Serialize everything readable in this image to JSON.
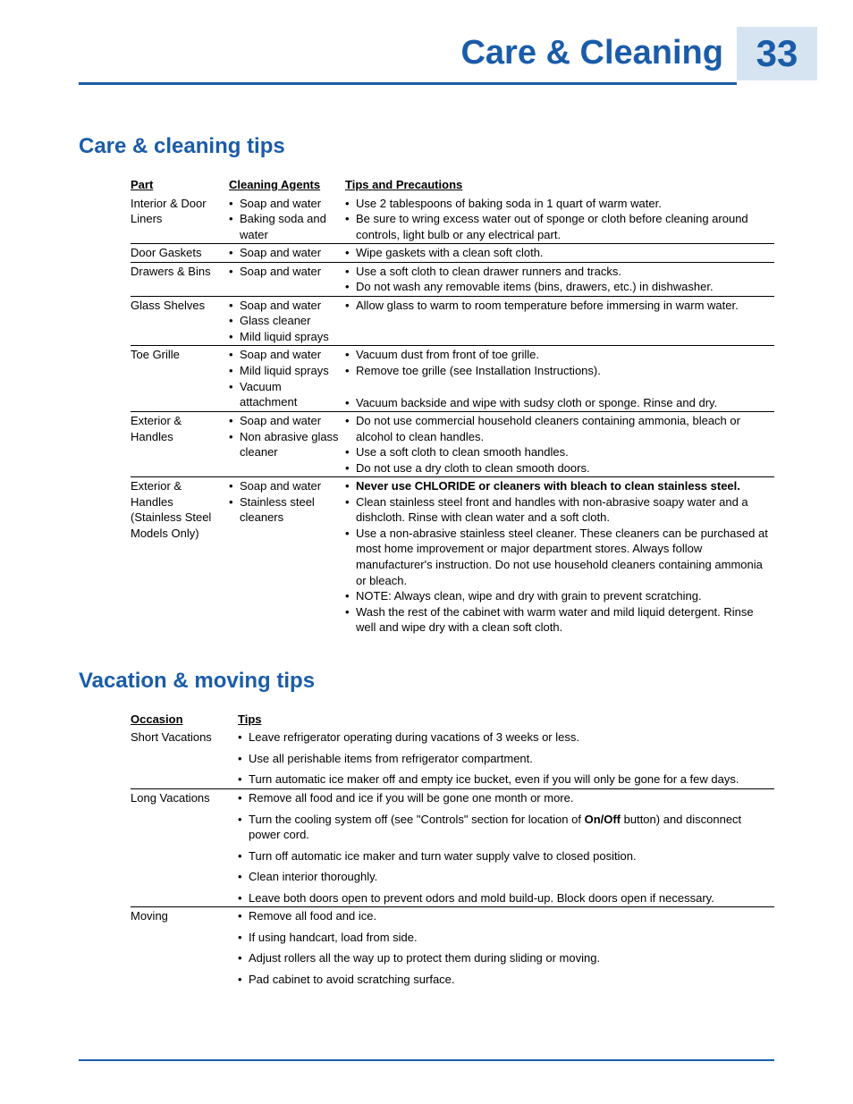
{
  "page": {
    "title": "Care & Cleaning",
    "number": "33"
  },
  "colors": {
    "accent": "#1a5ca8",
    "accent_light_bg": "#d6e4f2",
    "text": "#000000",
    "background": "#ffffff"
  },
  "typography": {
    "page_title_size": 38,
    "page_number_size": 42,
    "section_heading_size": 24,
    "body_size": 13,
    "font_family": "Arial"
  },
  "sections": {
    "care": {
      "heading": "Care & cleaning tips",
      "columns": {
        "part": "Part",
        "agents": "Cleaning Agents",
        "tips": "Tips and Precautions"
      },
      "rows": [
        {
          "part": "Interior & Door Liners",
          "agents": [
            "Soap and water",
            "Baking soda and water"
          ],
          "tips": [
            "Use 2 tablespoons of baking soda in 1 quart of warm water.",
            "Be sure to wring excess water out of sponge or cloth before cleaning around controls, light bulb or any electrical part."
          ]
        },
        {
          "part": "Door Gaskets",
          "agents": [
            "Soap and water"
          ],
          "tips": [
            "Wipe gaskets with a clean soft cloth."
          ]
        },
        {
          "part": "Drawers & Bins",
          "agents": [
            "Soap and water"
          ],
          "tips": [
            "Use a soft cloth to clean drawer runners and tracks.",
            "Do not wash any removable items (bins, drawers, etc.) in dishwasher."
          ]
        },
        {
          "part": "Glass Shelves",
          "agents": [
            "Soap and water",
            "Glass cleaner",
            "Mild liquid sprays"
          ],
          "tips": [
            "Allow glass to warm to room temperature before immersing in warm water."
          ]
        },
        {
          "part": "Toe Grille",
          "agents": [
            "Soap and water",
            "Mild liquid sprays",
            "Vacuum attachment"
          ],
          "tips": [
            "Vacuum dust from front of toe grille.",
            "Remove toe grille (see Installation Instructions).",
            "Vacuum backside and wipe with sudsy cloth or sponge.  Rinse and dry."
          ]
        },
        {
          "part": "Exterior & Handles",
          "agents": [
            "Soap and water",
            "Non abrasive glass cleaner"
          ],
          "tips": [
            "Do not use commercial household cleaners containing ammonia, bleach or alcohol to clean handles.",
            "Use a soft cloth to clean smooth handles.",
            "Do not use a dry cloth to clean smooth doors."
          ]
        },
        {
          "part": "Exterior & Handles (Stainless Steel Models Only)",
          "agents": [
            "Soap and water",
            "Stainless steel cleaners"
          ],
          "tips_html": [
            "<span class='bold'>Never use CHLORIDE or cleaners with bleach to clean stainless steel.</span>",
            "Clean stainless steel front and handles with non-abrasive soapy water and a dishcloth. Rinse with clean water and a soft cloth.",
            "Use a non-abrasive stainless steel cleaner. These cleaners can be purchased at most home improvement or major department stores. Always follow manufacturer's instruction. Do not use household cleaners containing ammonia or bleach.",
            "NOTE: Always clean, wipe and dry with grain to prevent scratching.",
            "Wash the rest of the cabinet with warm water and mild liquid detergent. Rinse well and wipe dry with a clean soft cloth."
          ]
        }
      ]
    },
    "vacation": {
      "heading": "Vacation & moving tips",
      "columns": {
        "occasion": "Occasion",
        "tips": "Tips"
      },
      "rows": [
        {
          "occasion": "Short Vacations",
          "tips": [
            "Leave refrigerator operating during vacations of 3 weeks or less.",
            "Use all perishable items from refrigerator compartment.",
            "Turn automatic ice maker off and empty ice bucket, even if you will only be gone for a few days."
          ]
        },
        {
          "occasion": "Long Vacations",
          "tips_html": [
            "Remove all food and ice if you will be gone one month or more.",
            "Turn the cooling system off (see \"Controls\" section for location of <span class='bold'>On/Off</span> button) and disconnect power cord.",
            "Turn off automatic ice maker and turn water supply valve to closed position.",
            "Clean interior thoroughly.",
            "Leave both doors open to prevent odors and mold build-up. Block doors open if necessary."
          ]
        },
        {
          "occasion": "Moving",
          "tips": [
            "Remove all food and ice.",
            "If using handcart, load from side.",
            "Adjust rollers all the way up to protect them during sliding or moving.",
            "Pad cabinet to avoid scratching surface."
          ]
        }
      ]
    }
  }
}
